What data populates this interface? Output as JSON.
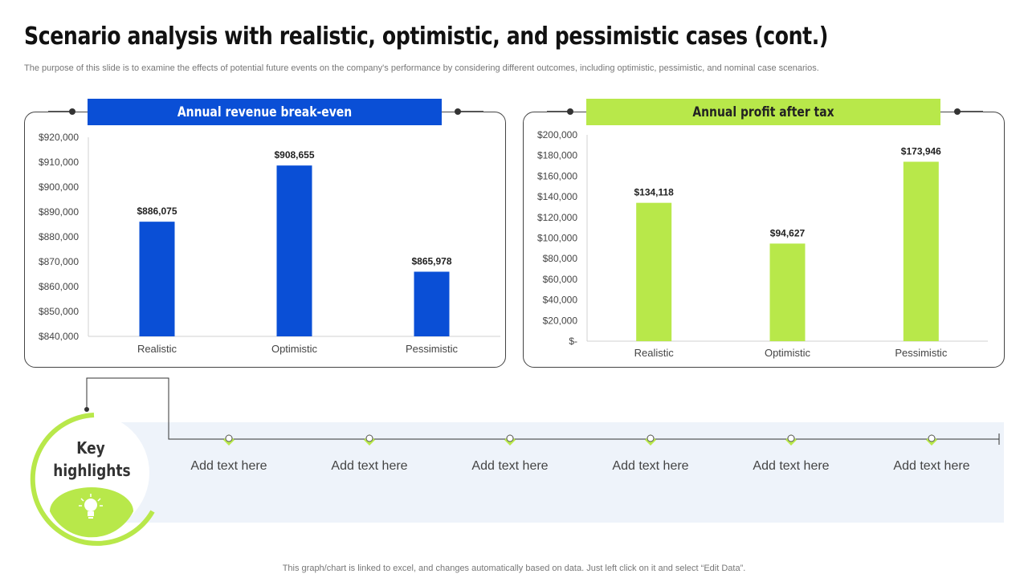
{
  "page": {
    "title": "Scenario analysis with realistic, optimistic, and pessimistic cases (cont.)",
    "subtitle": "The purpose of this slide is to examine the effects of potential future events on the company's performance by considering different outcomes, including optimistic, pessimistic, and nominal case scenarios.",
    "footer": "This graph/chart is linked to excel,  and changes automatically based on data. Just left click on it and select “Edit Data”."
  },
  "colors": {
    "blue": "#0a4fd6",
    "green": "#b8e84a",
    "axis_text": "#444444"
  },
  "chart_data": [
    {
      "type": "bar",
      "title": "Annual revenue break-even",
      "categories": [
        "Realistic",
        "Optimistic",
        "Pessimistic"
      ],
      "values": [
        886075,
        908655,
        865978
      ],
      "data_labels": [
        "$886,075",
        "$908,655",
        "$865,978"
      ],
      "ylim": [
        840000,
        920000
      ],
      "yticks": [
        840000,
        850000,
        860000,
        870000,
        880000,
        890000,
        900000,
        910000,
        920000
      ],
      "ytick_labels": [
        "$840,000",
        "$850,000",
        "$860,000",
        "$870,000",
        "$880,000",
        "$890,000",
        "$900,000",
        "$910,000",
        "$920,000"
      ],
      "color": "#0a4fd6",
      "title_color": "#ffffff"
    },
    {
      "type": "bar",
      "title": "Annual profit after tax",
      "categories": [
        "Realistic",
        "Optimistic",
        "Pessimistic"
      ],
      "values": [
        134118,
        94627,
        173946
      ],
      "data_labels": [
        "$134,118",
        "$94,627",
        "$173,946"
      ],
      "ylim": [
        0,
        200000
      ],
      "yticks": [
        0,
        20000,
        40000,
        60000,
        80000,
        100000,
        120000,
        140000,
        160000,
        180000,
        200000
      ],
      "ytick_labels": [
        "$-",
        "$20,000",
        "$40,000",
        "$60,000",
        "$80,000",
        "$100,000",
        "$120,000",
        "$140,000",
        "$160,000",
        "$180,000",
        "$200,000"
      ],
      "color": "#b8e84a",
      "title_color": "#222222"
    }
  ],
  "highlights": {
    "heading_line1": "Key",
    "heading_line2": "highlights",
    "icon": "lightbulb-icon",
    "items": [
      "Add text here",
      "Add text here",
      "Add text here",
      "Add text here",
      "Add text here",
      "Add text here"
    ]
  }
}
